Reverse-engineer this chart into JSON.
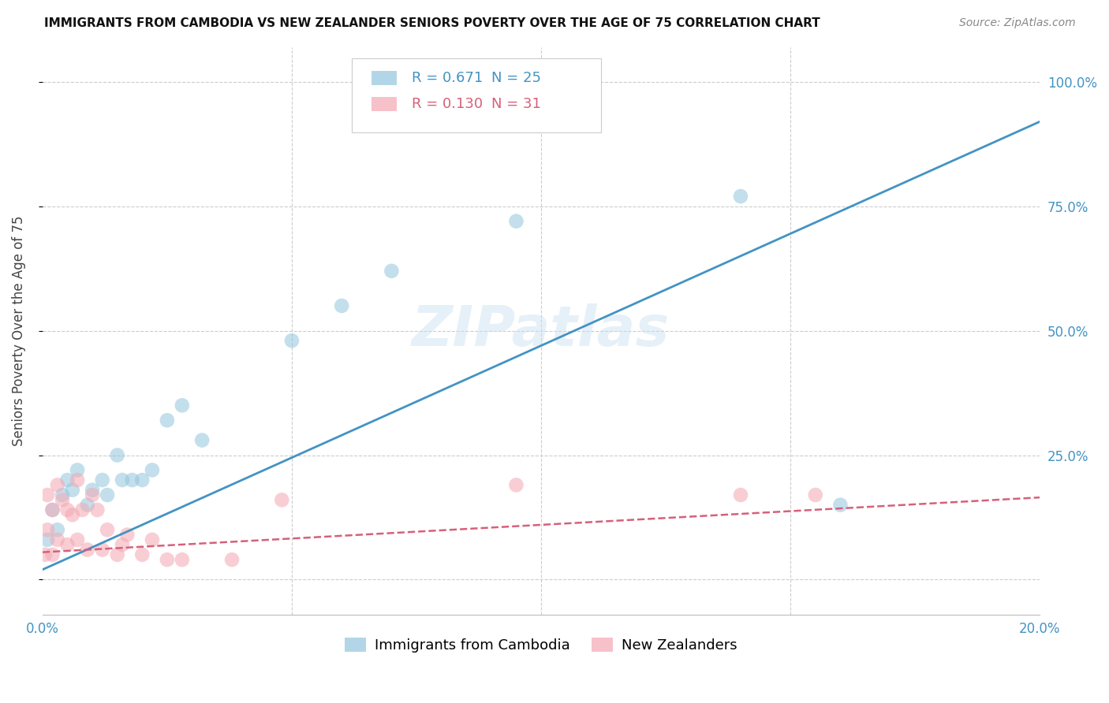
{
  "title": "IMMIGRANTS FROM CAMBODIA VS NEW ZEALANDER SENIORS POVERTY OVER THE AGE OF 75 CORRELATION CHART",
  "source": "Source: ZipAtlas.com",
  "ylabel": "Seniors Poverty Over the Age of 75",
  "y_ticks": [
    0.0,
    0.25,
    0.5,
    0.75,
    1.0
  ],
  "y_tick_labels_right": [
    "",
    "25.0%",
    "50.0%",
    "75.0%",
    "100.0%"
  ],
  "x_ticks": [
    0.0,
    0.05,
    0.1,
    0.15,
    0.2
  ],
  "x_tick_labels": [
    "0.0%",
    "",
    "",
    "",
    "20.0%"
  ],
  "legend_blue_r": "R = 0.671",
  "legend_blue_n": "N = 25",
  "legend_pink_r": "R = 0.130",
  "legend_pink_n": "N = 31",
  "legend_label_blue": "Immigrants from Cambodia",
  "legend_label_pink": "New Zealanders",
  "blue_color": "#92c5de",
  "blue_line_color": "#4393c3",
  "pink_color": "#f4a7b2",
  "pink_line_color": "#d6607a",
  "watermark": "ZIPatlas",
  "blue_scatter_x": [
    0.001,
    0.002,
    0.003,
    0.004,
    0.005,
    0.006,
    0.007,
    0.009,
    0.01,
    0.012,
    0.013,
    0.015,
    0.016,
    0.018,
    0.02,
    0.022,
    0.025,
    0.028,
    0.032,
    0.05,
    0.06,
    0.07,
    0.095,
    0.14,
    0.16
  ],
  "blue_scatter_y": [
    0.08,
    0.14,
    0.1,
    0.17,
    0.2,
    0.18,
    0.22,
    0.15,
    0.18,
    0.2,
    0.17,
    0.25,
    0.2,
    0.2,
    0.2,
    0.22,
    0.32,
    0.35,
    0.28,
    0.48,
    0.55,
    0.62,
    0.72,
    0.77,
    0.15
  ],
  "pink_scatter_x": [
    0.0005,
    0.001,
    0.001,
    0.002,
    0.002,
    0.003,
    0.003,
    0.004,
    0.005,
    0.005,
    0.006,
    0.007,
    0.007,
    0.008,
    0.009,
    0.01,
    0.011,
    0.012,
    0.013,
    0.015,
    0.016,
    0.017,
    0.02,
    0.022,
    0.025,
    0.028,
    0.038,
    0.048,
    0.095,
    0.14,
    0.155
  ],
  "pink_scatter_y": [
    0.05,
    0.1,
    0.17,
    0.05,
    0.14,
    0.08,
    0.19,
    0.16,
    0.14,
    0.07,
    0.13,
    0.2,
    0.08,
    0.14,
    0.06,
    0.17,
    0.14,
    0.06,
    0.1,
    0.05,
    0.07,
    0.09,
    0.05,
    0.08,
    0.04,
    0.04,
    0.04,
    0.16,
    0.19,
    0.17,
    0.17
  ],
  "blue_line_x0": 0.0,
  "blue_line_y0": 0.02,
  "blue_line_x1": 0.2,
  "blue_line_y1": 0.92,
  "pink_line_x0": 0.0,
  "pink_line_y0": 0.055,
  "pink_line_x1": 0.2,
  "pink_line_y1": 0.165,
  "xlim": [
    0.0,
    0.2
  ],
  "ylim": [
    -0.07,
    1.07
  ],
  "figsize": [
    14.06,
    8.92
  ],
  "dpi": 100
}
